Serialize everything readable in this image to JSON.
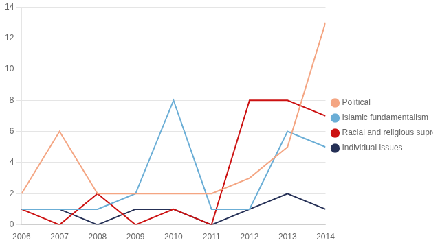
{
  "chart_data": {
    "type": "line",
    "x": [
      2006,
      2007,
      2008,
      2009,
      2010,
      2011,
      2012,
      2013,
      2014
    ],
    "series": [
      {
        "name": "Political",
        "color": "#f4a582",
        "values": [
          2,
          6,
          2,
          2,
          2,
          2,
          3,
          5,
          13
        ]
      },
      {
        "name": "Islamic fundamentalism",
        "color": "#6baed6",
        "values": [
          1,
          1,
          1,
          2,
          8,
          1,
          1,
          6,
          5
        ]
      },
      {
        "name": "Racial and religious supremacists",
        "color": "#cc1111",
        "values": [
          1,
          0,
          2,
          0,
          1,
          0,
          8,
          8,
          7
        ]
      },
      {
        "name": "Individual issues",
        "color": "#253056",
        "values": [
          1,
          1,
          0,
          1,
          1,
          0,
          1,
          2,
          1
        ]
      }
    ],
    "xlim": [
      2006,
      2014
    ],
    "xticks": [
      2006,
      2007,
      2008,
      2009,
      2010,
      2011,
      2012,
      2013,
      2014
    ],
    "ylim": [
      0,
      14
    ],
    "yticks": [
      0,
      2,
      4,
      6,
      8,
      10,
      12,
      14
    ],
    "grid": "y",
    "legend": "right"
  }
}
